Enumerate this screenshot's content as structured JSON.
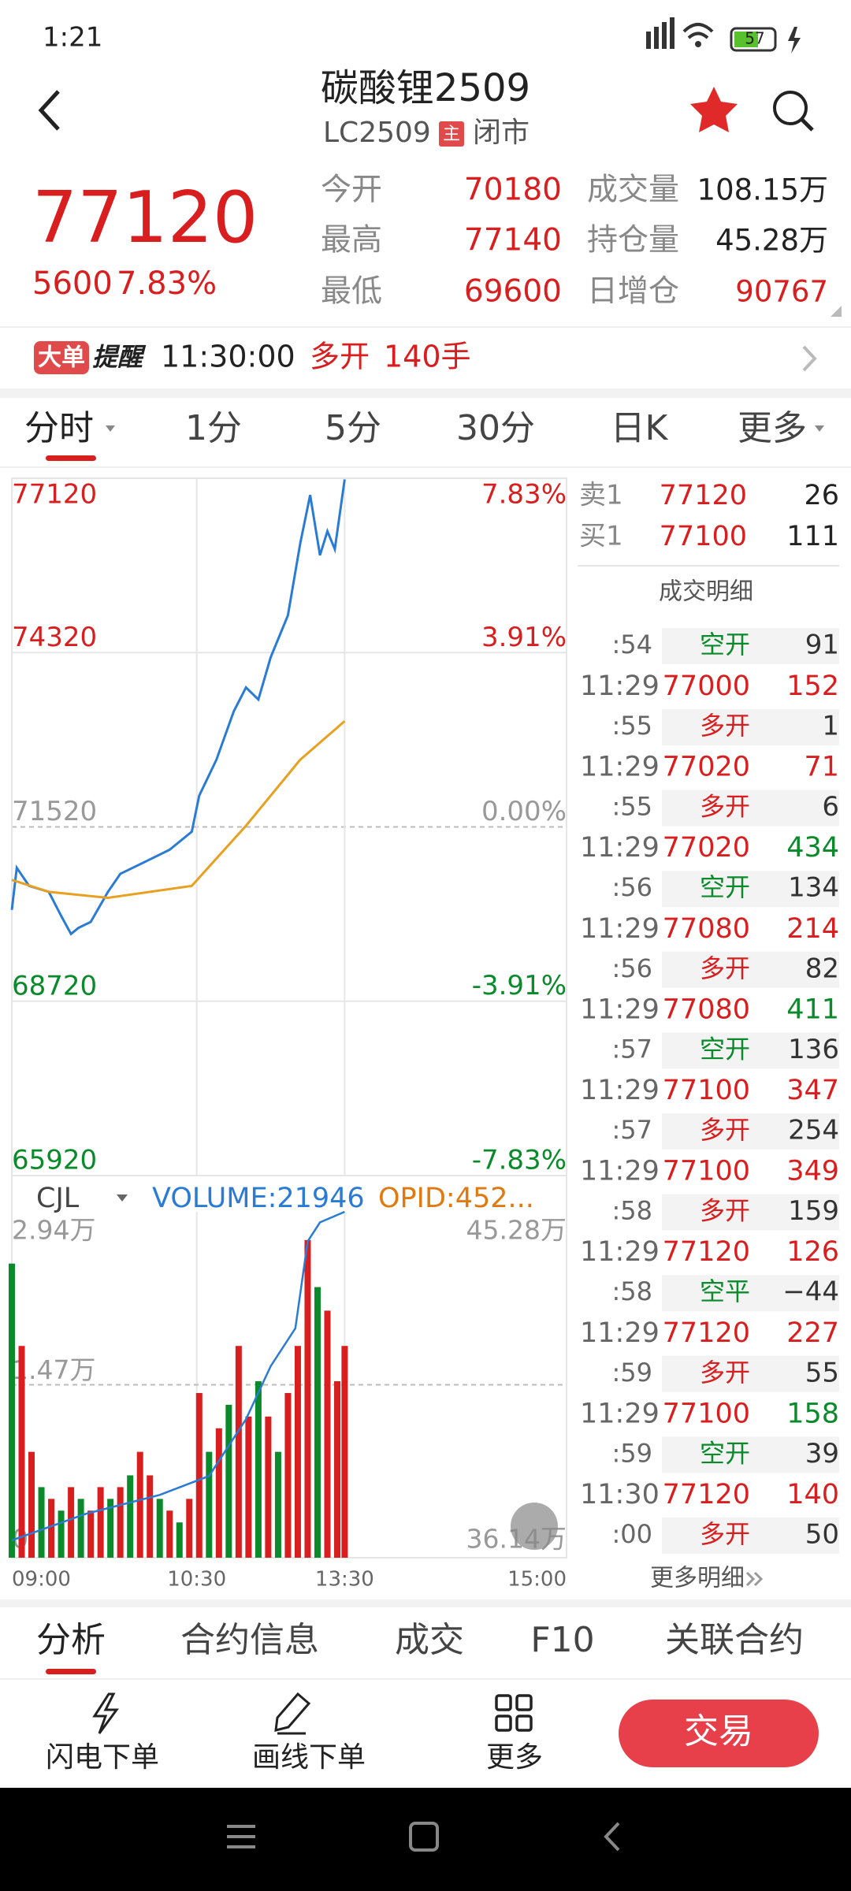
{
  "status": {
    "time": "1:21",
    "battery": "57"
  },
  "header": {
    "title": "碳酸锂2509",
    "code": "LC2509",
    "badge": "主",
    "state": "闭市"
  },
  "quote": {
    "price": "77120",
    "change": "5600",
    "pct": "7.83%",
    "stats": [
      {
        "label": "今开",
        "value": "70180"
      },
      {
        "label": "成交量",
        "value": "108.15万"
      },
      {
        "label": "最高",
        "value": "77140"
      },
      {
        "label": "持仓量",
        "value": "45.28万"
      },
      {
        "label": "最低",
        "value": "69600"
      },
      {
        "label": "日增仓",
        "value": "90767"
      }
    ]
  },
  "alert": {
    "tag": "大单",
    "tag2": "提醒",
    "time": "11:30:00",
    "action": "多开",
    "qty": "140手"
  },
  "tabs": [
    "分时",
    "1分",
    "5分",
    "30分",
    "日K",
    "更多"
  ],
  "chart_data": [
    {
      "type": "line",
      "xlim": [
        0,
        225
      ],
      "xticks": [
        {
          "value": 0,
          "label": "09:00"
        },
        {
          "value": 75,
          "label": "10:30"
        },
        {
          "value": 135,
          "label": "13:30"
        },
        {
          "value": 225,
          "label": "15:00"
        }
      ],
      "ylim": [
        65920,
        77120
      ],
      "yticks": [
        77120,
        74320,
        71520,
        68720,
        65920
      ],
      "y2lim": [
        -7.83,
        7.83
      ],
      "y2ticks": [
        {
          "value": 7.83,
          "label": "7.83%"
        },
        {
          "value": 3.91,
          "label": "3.91%"
        },
        {
          "value": 0,
          "label": "0.00%"
        },
        {
          "value": -3.91,
          "label": "-3.91%"
        },
        {
          "value": -7.83,
          "label": "-7.83%"
        }
      ],
      "grid": true,
      "series": [
        {
          "color": "#2a7bd4",
          "x": [
            0,
            2,
            7,
            15,
            20,
            24,
            27,
            32,
            39,
            44,
            54,
            64,
            73,
            76,
            83,
            90,
            95,
            100,
            105,
            112,
            117,
            121,
            125,
            128,
            131,
            135
          ],
          "values": [
            70188,
            70863,
            70574,
            70477,
            70091,
            69801,
            69897,
            69994,
            70477,
            70767,
            70960,
            71153,
            71443,
            72022,
            72601,
            73374,
            73760,
            73567,
            74243,
            74919,
            76078,
            76850,
            75884,
            76270,
            75981,
            77101
          ]
        },
        {
          "color": "#e8a020",
          "x": [
            0,
            15,
            39,
            73,
            95,
            117,
            135
          ],
          "values": [
            70670,
            70477,
            70381,
            70574,
            71539,
            72601,
            73219
          ]
        }
      ]
    },
    {
      "type": "bar",
      "legend": [
        "CJL",
        "VOLUME:21946",
        "OPID:452..."
      ],
      "ylim": [
        0,
        2.94
      ],
      "yticks": [
        0,
        {
          "value": 1.47,
          "label": "1.47万"
        },
        {
          "value": 2.94,
          "label": "2.94万"
        }
      ],
      "y2lim": [
        36.14,
        45.28
      ],
      "y2ticks": [
        {
          "value": 45.28,
          "label": "45.28万"
        },
        {
          "value": 36.14,
          "label": "36.14万"
        }
      ],
      "x": [
        0,
        4,
        8,
        12,
        16,
        20,
        24,
        28,
        32,
        36,
        40,
        44,
        48,
        52,
        56,
        60,
        64,
        68,
        72,
        76,
        80,
        84,
        88,
        92,
        96,
        100,
        104,
        108,
        112,
        116,
        120,
        124,
        128,
        132,
        135
      ],
      "values": [
        2.5,
        1.8,
        0.9,
        0.6,
        0.5,
        0.4,
        0.6,
        0.5,
        0.4,
        0.6,
        0.5,
        0.6,
        0.7,
        0.9,
        0.7,
        0.5,
        0.4,
        0.3,
        0.5,
        1.4,
        0.9,
        1.1,
        1.3,
        1.8,
        1.2,
        1.5,
        1.2,
        0.9,
        1.4,
        1.8,
        2.7,
        2.3,
        2.1,
        1.5,
        1.8
      ],
      "bar_colors": [
        "#0a8a2a",
        "#d81e1e",
        "#d81e1e",
        "#0a8a2a",
        "#d81e1e",
        "#0a8a2a",
        "#d81e1e",
        "#0a8a2a",
        "#d81e1e",
        "#d81e1e",
        "#0a8a2a",
        "#d81e1e",
        "#0a8a2a",
        "#d81e1e",
        "#d81e1e",
        "#0a8a2a",
        "#d81e1e",
        "#0a8a2a",
        "#d81e1e",
        "#d81e1e",
        "#0a8a2a",
        "#d81e1e",
        "#0a8a2a",
        "#d81e1e",
        "#d81e1e",
        "#0a8a2a",
        "#d81e1e",
        "#0a8a2a",
        "#d81e1e",
        "#d81e1e",
        "#d81e1e",
        "#0a8a2a",
        "#d81e1e",
        "#d81e1e",
        "#d81e1e"
      ],
      "series": [
        {
          "color": "#2a7bd4",
          "axis": "y2",
          "x": [
            0,
            30,
            60,
            80,
            95,
            105,
            115,
            120,
            125,
            135
          ],
          "values": [
            36.6,
            37.3,
            37.8,
            38.3,
            39.8,
            41.2,
            42.2,
            44.5,
            45.0,
            45.28
          ]
        }
      ]
    }
  ],
  "book": [
    {
      "side": "卖1",
      "price": "77120",
      "qty": "26"
    },
    {
      "side": "买1",
      "price": "77100",
      "qty": "111"
    }
  ],
  "trades_title": "成交明细",
  "trades_partial": {
    "sec": ":54",
    "type": "空开",
    "oi": "91",
    "type_color": "#0a8a2a"
  },
  "trades": [
    {
      "time": "11:29",
      "price": "77000",
      "vol": "152",
      "vol_color": "#d81e1e",
      "sec": ":55",
      "type": "多开",
      "type_color": "#d81e1e",
      "oi": "1"
    },
    {
      "time": "11:29",
      "price": "77020",
      "vol": "71",
      "vol_color": "#d81e1e",
      "sec": ":55",
      "type": "多开",
      "type_color": "#d81e1e",
      "oi": "6"
    },
    {
      "time": "11:29",
      "price": "77020",
      "vol": "434",
      "vol_color": "#0a8a2a",
      "sec": ":56",
      "type": "空开",
      "type_color": "#0a8a2a",
      "oi": "134"
    },
    {
      "time": "11:29",
      "price": "77080",
      "vol": "214",
      "vol_color": "#d81e1e",
      "sec": ":56",
      "type": "多开",
      "type_color": "#d81e1e",
      "oi": "82"
    },
    {
      "time": "11:29",
      "price": "77080",
      "vol": "411",
      "vol_color": "#0a8a2a",
      "sec": ":57",
      "type": "空开",
      "type_color": "#0a8a2a",
      "oi": "136"
    },
    {
      "time": "11:29",
      "price": "77100",
      "vol": "347",
      "vol_color": "#d81e1e",
      "sec": ":57",
      "type": "多开",
      "type_color": "#d81e1e",
      "oi": "254"
    },
    {
      "time": "11:29",
      "price": "77100",
      "vol": "349",
      "vol_color": "#d81e1e",
      "sec": ":58",
      "type": "多开",
      "type_color": "#d81e1e",
      "oi": "159"
    },
    {
      "time": "11:29",
      "price": "77120",
      "vol": "126",
      "vol_color": "#d81e1e",
      "sec": ":58",
      "type": "空平",
      "type_color": "#0a8a2a",
      "oi": "−44"
    },
    {
      "time": "11:29",
      "price": "77120",
      "vol": "227",
      "vol_color": "#d81e1e",
      "sec": ":59",
      "type": "多开",
      "type_color": "#d81e1e",
      "oi": "55"
    },
    {
      "time": "11:29",
      "price": "77100",
      "vol": "158",
      "vol_color": "#0a8a2a",
      "sec": ":59",
      "type": "空开",
      "type_color": "#0a8a2a",
      "oi": "39"
    },
    {
      "time": "11:30",
      "price": "77120",
      "vol": "140",
      "vol_color": "#d81e1e",
      "sec": ":00",
      "type": "多开",
      "type_color": "#d81e1e",
      "oi": "50"
    }
  ],
  "more": "更多明细",
  "bottom_tabs": [
    "分析",
    "合约信息",
    "成交",
    "F10",
    "关联合约"
  ],
  "toolbar": [
    "闪电下单",
    "画线下单",
    "更多"
  ],
  "trade_button": "交易"
}
